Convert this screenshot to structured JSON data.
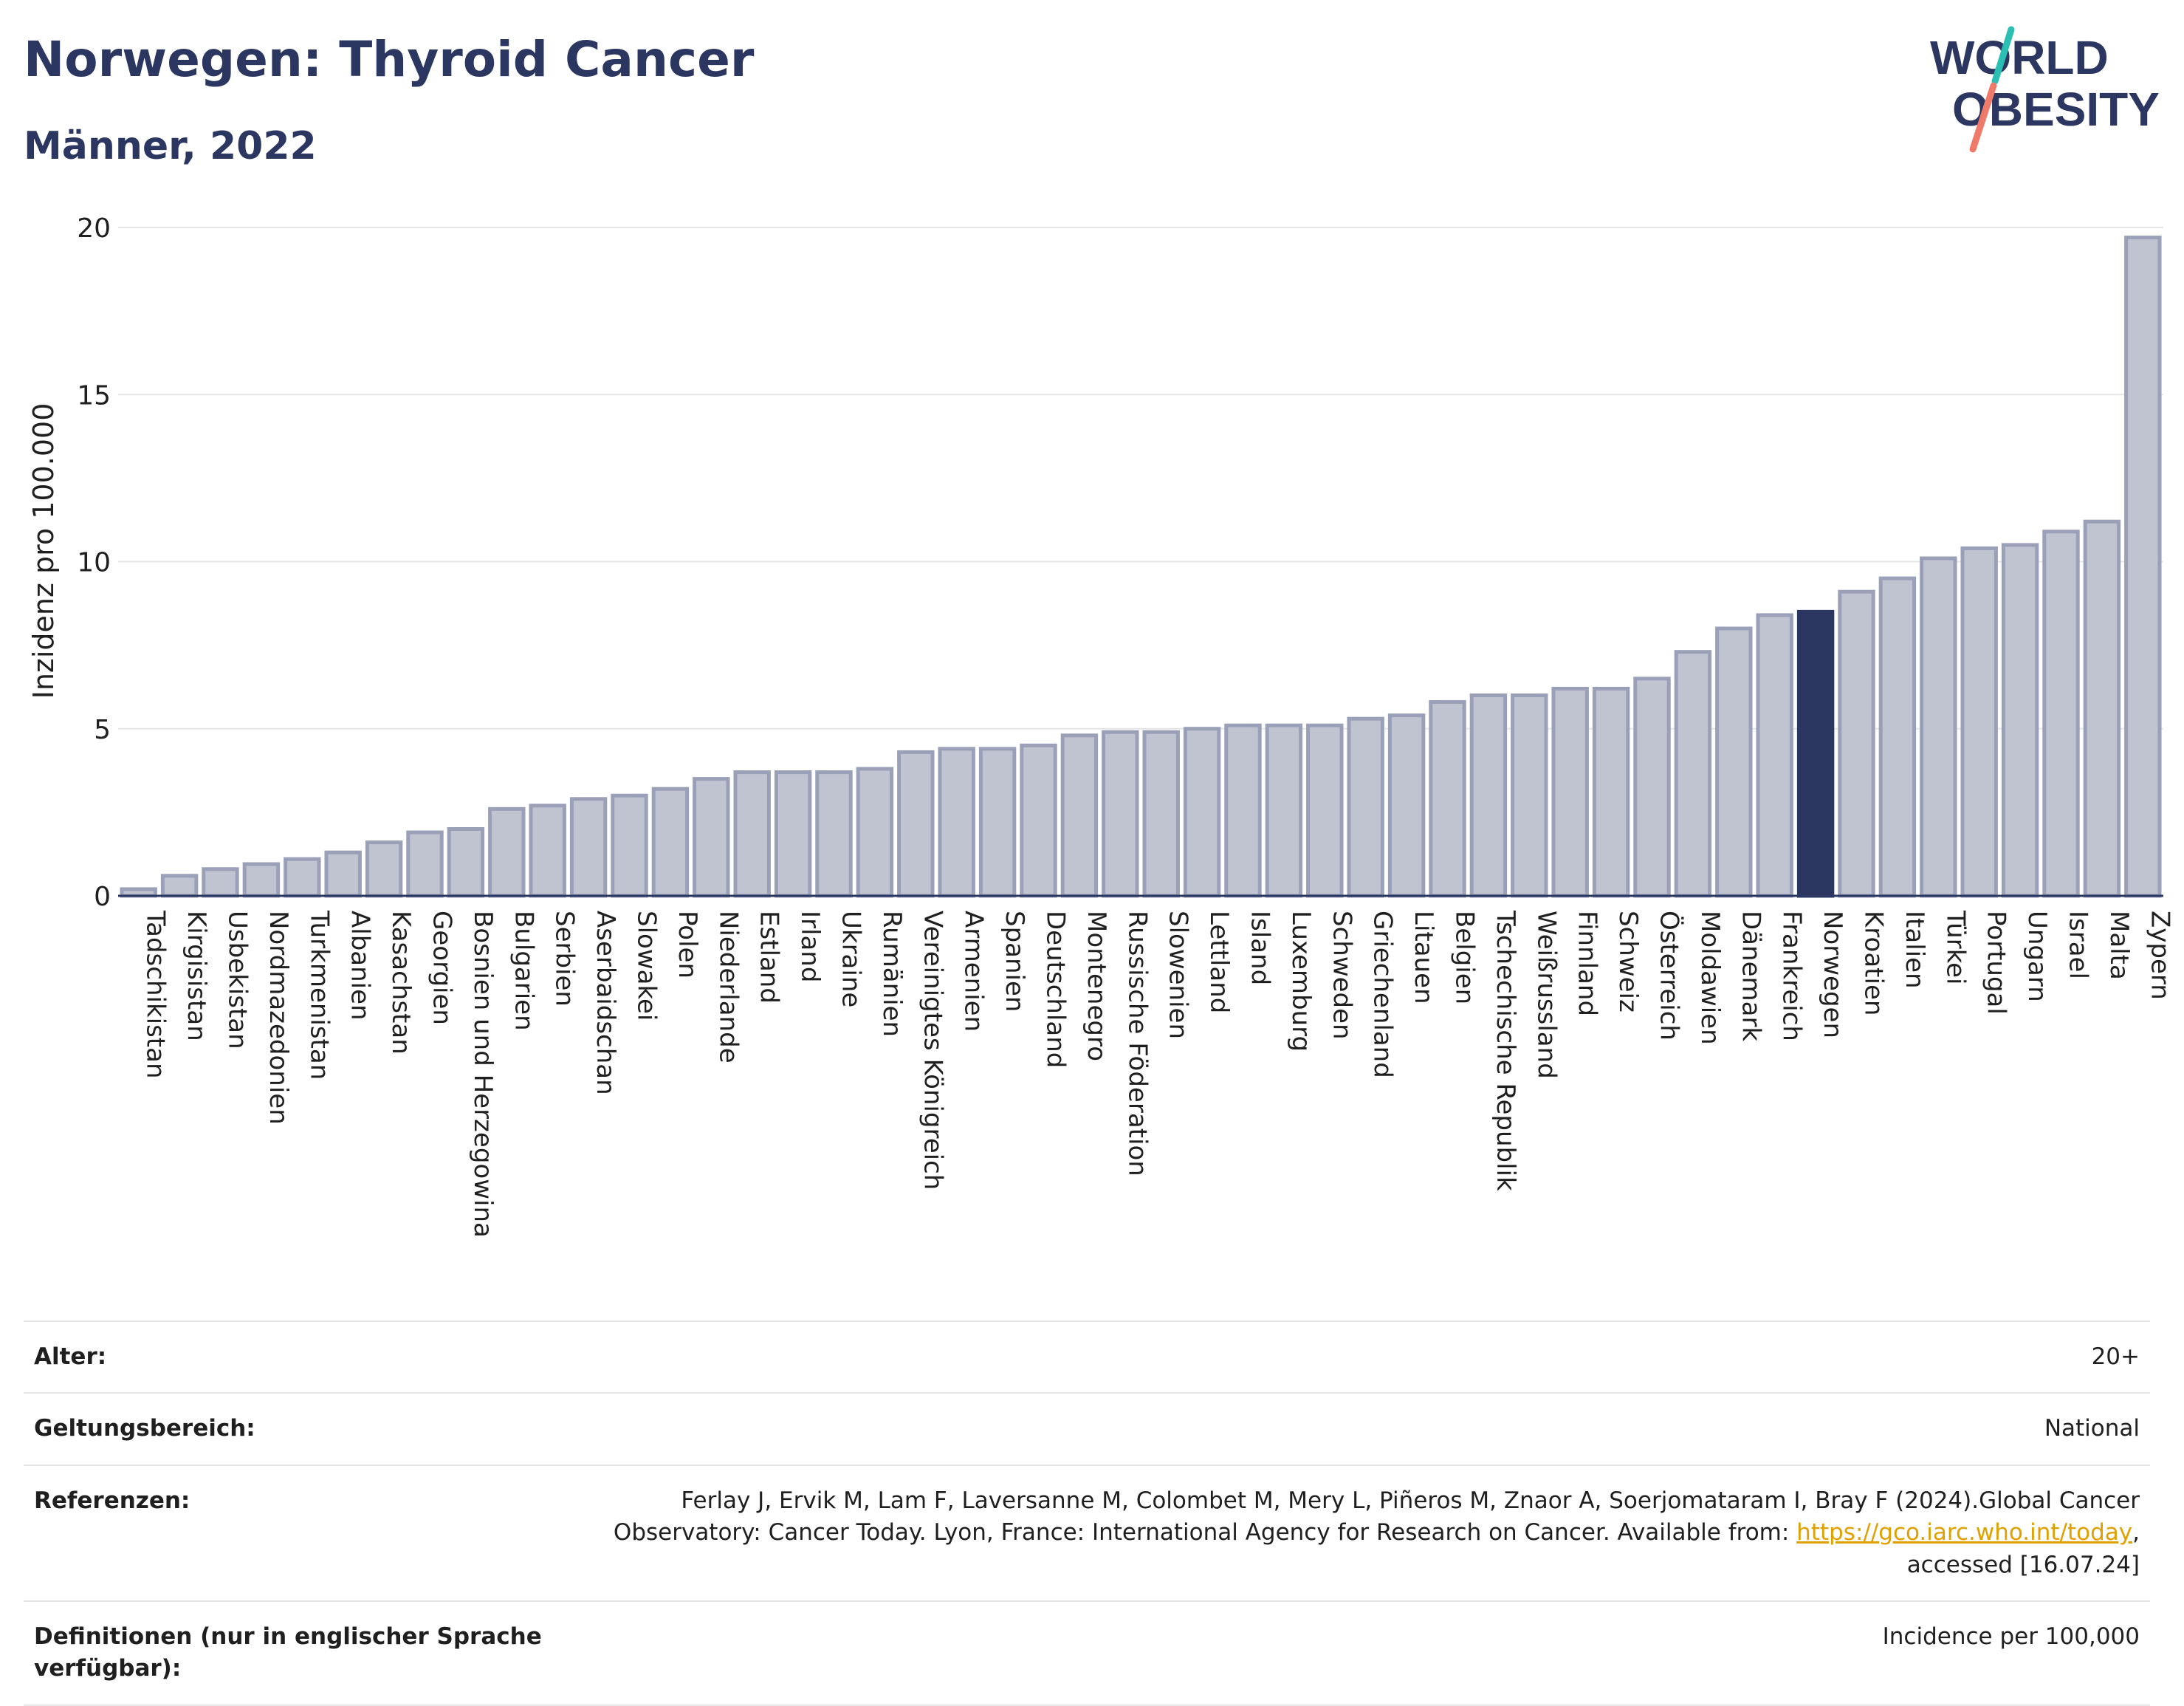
{
  "header": {
    "title": "Norwegen: Thyroid Cancer",
    "subtitle": "Männer, 2022",
    "logo_line1": "WORLD",
    "logo_line2": "OBESITY"
  },
  "chart_data": {
    "type": "bar",
    "title": "Norwegen: Thyroid Cancer",
    "subtitle": "Männer, 2022",
    "ylabel": "Inzidenz pro 100.000",
    "xlabel": "",
    "ylim": [
      0,
      20
    ],
    "yticks": [
      0,
      5,
      10,
      15,
      20
    ],
    "grid": true,
    "highlight": "Norwegen",
    "colors": {
      "bar": "#c0c4d1",
      "bar_edge": "#9aa0b8",
      "highlight": "#2b3761",
      "grid": "#e6e6e6",
      "axis": "#2b3761"
    },
    "categories": [
      "Tadschikistan",
      "Kirgisistan",
      "Usbekistan",
      "Nordmazedonien",
      "Turkmenistan",
      "Albanien",
      "Kasachstan",
      "Georgien",
      "Bosnien und Herzegowina",
      "Bulgarien",
      "Serbien",
      "Aserbaidschan",
      "Slowakei",
      "Polen",
      "Niederlande",
      "Estland",
      "Irland",
      "Ukraine",
      "Rumänien",
      "Vereinigtes Königreich",
      "Armenien",
      "Spanien",
      "Deutschland",
      "Montenegro",
      "Russische Föderation",
      "Slowenien",
      "Lettland",
      "Island",
      "Luxemburg",
      "Schweden",
      "Griechenland",
      "Litauen",
      "Belgien",
      "Tschechische Republik",
      "Weißrussland",
      "Finnland",
      "Schweiz",
      "Österreich",
      "Moldawien",
      "Dänemark",
      "Frankreich",
      "Norwegen",
      "Kroatien",
      "Italien",
      "Türkei",
      "Portugal",
      "Ungarn",
      "Israel",
      "Malta",
      "Zypern"
    ],
    "values": [
      0.2,
      0.6,
      0.8,
      0.95,
      1.1,
      1.3,
      1.6,
      1.9,
      2.0,
      2.6,
      2.7,
      2.9,
      3.0,
      3.2,
      3.5,
      3.7,
      3.7,
      3.7,
      3.8,
      4.3,
      4.4,
      4.4,
      4.5,
      4.8,
      4.9,
      4.9,
      5.0,
      5.1,
      5.1,
      5.1,
      5.3,
      5.4,
      5.8,
      6.0,
      6.0,
      6.2,
      6.2,
      6.5,
      7.3,
      8.0,
      8.4,
      8.5,
      9.1,
      9.5,
      10.1,
      10.4,
      10.5,
      10.9,
      11.2,
      19.7
    ]
  },
  "info": {
    "age_label": "Alter:",
    "age_value": "20+",
    "scope_label": "Geltungsbereich:",
    "scope_value": "National",
    "ref_label": "Referenzen:",
    "ref_text1": "Ferlay J, Ervik M, Lam F, Laversanne M, Colombet M, Mery L, Piñeros M, Znaor A, Soerjomataram I, Bray F (2024).Global Cancer Observatory: Cancer Today. Lyon, France: International Agency for Research on Cancer. Available from: ",
    "ref_link": "https://gco.iarc.who.int/today",
    "ref_text2": ", accessed [16.07.24]",
    "def_label": "Definitionen (nur in englischer Sprache verfügbar):",
    "def_value": "Incidence per 100,000"
  }
}
